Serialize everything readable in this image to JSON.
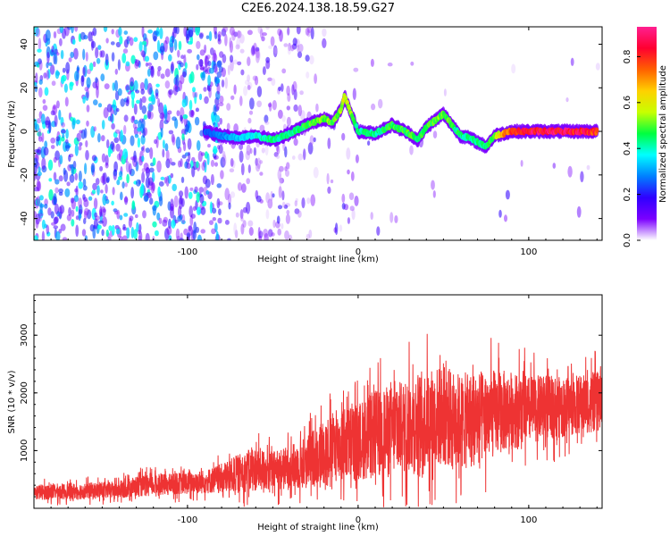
{
  "title": "C2E6.2024.138.18.59.G27",
  "chart_data": [
    {
      "type": "heatmap",
      "xlabel": "Height of straight line (km)",
      "ylabel": "Frequency (Hz)",
      "xlim": [
        -190,
        143
      ],
      "ylim": [
        -50,
        48
      ],
      "xticks": [
        -100,
        0,
        100
      ],
      "yticks": [
        -40,
        -20,
        0,
        20,
        40
      ],
      "grid": false,
      "colorbar": {
        "label": "Normalized spectral amplitude",
        "range": [
          0.0,
          0.93
        ],
        "ticks": [
          "0.0",
          "0.2",
          "0.4",
          "0.6",
          "0.8"
        ],
        "colors": [
          "#ffffff",
          "#7b00ff",
          "#2f00ff",
          "#0080ff",
          "#00ffff",
          "#00ff40",
          "#c8ff00",
          "#ffd000",
          "#ff6000",
          "#ff0030",
          "#ff2090"
        ]
      },
      "ridge": {
        "x": [
          -90,
          -80,
          -70,
          -60,
          -50,
          -40,
          -30,
          -20,
          -15,
          -10,
          -8,
          -5,
          0,
          10,
          20,
          30,
          35,
          40,
          45,
          50,
          55,
          60,
          65,
          70,
          75,
          80,
          90,
          100,
          110,
          120,
          130,
          140
        ],
        "y": [
          0,
          -2,
          -3,
          -2,
          -4,
          -1,
          3,
          6,
          4,
          10,
          16,
          10,
          0,
          -1,
          3,
          -1,
          -4,
          2,
          5,
          8,
          3,
          -2,
          -3,
          -5,
          -7,
          -2,
          0,
          0,
          0,
          0,
          0,
          0
        ],
        "amplitude": [
          0.25,
          0.3,
          0.35,
          0.4,
          0.45,
          0.45,
          0.5,
          0.55,
          0.5,
          0.55,
          0.6,
          0.55,
          0.45,
          0.45,
          0.5,
          0.5,
          0.5,
          0.5,
          0.5,
          0.55,
          0.5,
          0.45,
          0.45,
          0.45,
          0.45,
          0.55,
          0.85,
          0.9,
          0.9,
          0.9,
          0.88,
          0.85
        ]
      }
    },
    {
      "type": "line",
      "xlabel": "Height of straight line (km)",
      "ylabel": "SNR (10 * v/v)",
      "xlim": [
        -190,
        143
      ],
      "ylim": [
        0,
        3700
      ],
      "xticks": [
        -100,
        0,
        100
      ],
      "yticks": [
        1000,
        2000,
        3000
      ],
      "grid": false,
      "series": [
        {
          "color": "#ee3333",
          "envelope_x": [
            -190,
            -160,
            -140,
            -130,
            -110,
            -90,
            -80,
            -70,
            -60,
            -50,
            -40,
            -30,
            -20,
            -10,
            0,
            10,
            20,
            30,
            40,
            50,
            60,
            70,
            80,
            90,
            100,
            110,
            120,
            130,
            143
          ],
          "envelope_mean": [
            280,
            300,
            320,
            380,
            420,
            460,
            520,
            600,
            680,
            650,
            700,
            800,
            1000,
            1100,
            1150,
            1300,
            1350,
            1450,
            1550,
            1600,
            1500,
            1550,
            1650,
            1700,
            1700,
            1750,
            1750,
            1800,
            1850
          ],
          "envelope_amp": [
            170,
            180,
            190,
            230,
            230,
            260,
            320,
            420,
            480,
            430,
            480,
            580,
            720,
            800,
            850,
            950,
            980,
            1050,
            1100,
            1100,
            1050,
            1050,
            950,
            850,
            750,
            700,
            650,
            650,
            650
          ]
        }
      ]
    }
  ]
}
